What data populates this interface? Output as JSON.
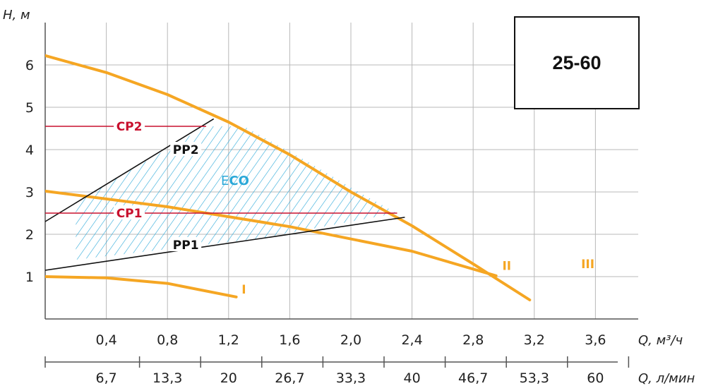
{
  "chart_data": {
    "type": "line",
    "model_label": "25-60",
    "ylabel": "H, м",
    "xlabel_primary": "Q, м³/ч",
    "xlabel_secondary": "Q, л/мин",
    "xlim": [
      0,
      3.88
    ],
    "ylim": [
      0,
      7
    ],
    "grid": true,
    "y_ticks": [
      "1",
      "2",
      "3",
      "4",
      "5",
      "6"
    ],
    "y_tick_values": [
      1,
      2,
      3,
      4,
      5,
      6
    ],
    "x_ticks": [
      "0,4",
      "0,8",
      "1,2",
      "1,6",
      "2,0",
      "2,4",
      "2,8",
      "3,2",
      "3,6"
    ],
    "x_tick_values": [
      0.4,
      0.8,
      1.2,
      1.6,
      2.0,
      2.4,
      2.8,
      3.2,
      3.6
    ],
    "x2_ticks": [
      "6,7",
      "13,3",
      "20",
      "26,7",
      "33,3",
      "40",
      "46,7",
      "53,3",
      "60"
    ],
    "colors": {
      "pump_curve": "#f5a623",
      "control_line": "#111111",
      "cp_line": "#c8102e",
      "eco_hatch": "#2aa8d8",
      "grid": "#b8b8b8"
    },
    "series": [
      {
        "name": "III",
        "kind": "pump-curve",
        "x": [
          0,
          0.4,
          0.8,
          1.2,
          1.6,
          2.0,
          2.4,
          2.8,
          3.17
        ],
        "y": [
          6.22,
          5.82,
          5.3,
          4.65,
          3.88,
          3.0,
          2.2,
          1.3,
          0.45
        ]
      },
      {
        "name": "II",
        "kind": "pump-curve",
        "x": [
          0,
          0.8,
          1.6,
          2.4,
          2.95
        ],
        "y": [
          3.02,
          2.65,
          2.18,
          1.6,
          1.02
        ]
      },
      {
        "name": "I",
        "kind": "pump-curve",
        "x": [
          0,
          0.4,
          0.8,
          1.25
        ],
        "y": [
          1.0,
          0.97,
          0.84,
          0.52
        ]
      },
      {
        "name": "PP2",
        "kind": "control-line",
        "x": [
          0,
          1.1
        ],
        "y": [
          2.3,
          4.72
        ]
      },
      {
        "name": "PP1",
        "kind": "control-line",
        "x": [
          0,
          2.35
        ],
        "y": [
          1.15,
          2.4
        ]
      },
      {
        "name": "CP2",
        "kind": "constant-pressure",
        "x": [
          0,
          1.05
        ],
        "y": [
          4.55,
          4.55
        ]
      },
      {
        "name": "CP1",
        "kind": "constant-pressure",
        "x": [
          0,
          2.3
        ],
        "y": [
          2.5,
          2.5
        ]
      }
    ],
    "eco_area": {
      "label_prefix": "E",
      "label_suffix": "CO",
      "polygon_x": [
        0.2,
        1.05,
        1.3,
        1.7,
        2.05,
        2.3,
        1.4,
        0.2
      ],
      "polygon_y": [
        2.75,
        4.55,
        4.55,
        3.75,
        3.0,
        2.5,
        1.9,
        1.4
      ]
    },
    "labels": [
      {
        "text": "CP2",
        "x": 0.55,
        "y": 4.55,
        "color": "#c8102e"
      },
      {
        "text": "CP1",
        "x": 0.55,
        "y": 2.5,
        "color": "#c8102e"
      },
      {
        "text": "PP2",
        "x": 0.92,
        "y": 4.0,
        "color": "#111111"
      },
      {
        "text": "PP1",
        "x": 0.92,
        "y": 1.75,
        "color": "#111111"
      },
      {
        "text": "I",
        "x": 1.3,
        "y": 0.7,
        "color": "#f5a623"
      },
      {
        "text": "II",
        "x": 3.02,
        "y": 1.26,
        "color": "#f5a623"
      },
      {
        "text": "III",
        "x": 3.55,
        "y": 1.3,
        "color": "#f5a623"
      }
    ]
  }
}
